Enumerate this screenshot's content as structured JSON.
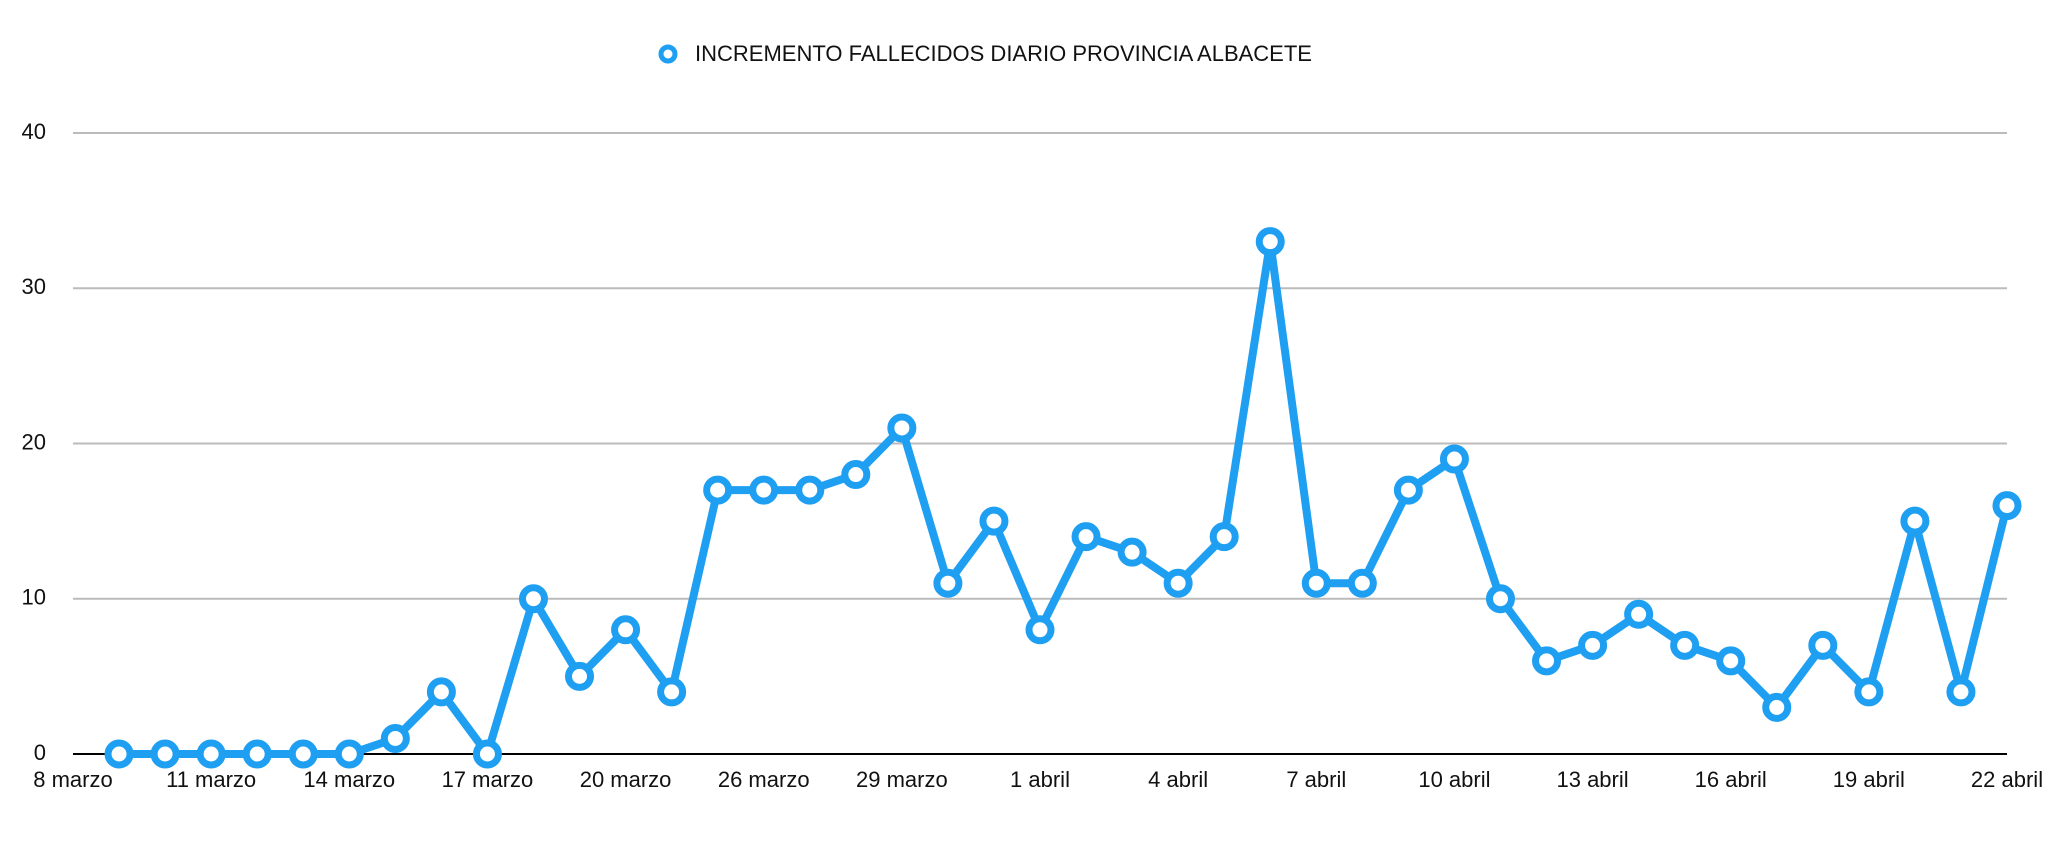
{
  "chart_data": {
    "type": "line",
    "categories": [
      "8 marzo",
      null,
      null,
      "11 marzo",
      null,
      null,
      "14 marzo",
      null,
      null,
      "17 marzo",
      null,
      null,
      "20 marzo",
      null,
      null,
      "26 marzo",
      null,
      null,
      "29 marzo",
      null,
      null,
      "1 abril",
      null,
      null,
      "4 abril",
      null,
      null,
      "7 abril",
      null,
      null,
      "10 abril",
      null,
      null,
      "13 abril",
      null,
      null,
      "16 abril",
      null,
      null,
      "19 abril",
      null,
      null,
      "22 abril"
    ],
    "series": [
      {
        "name": "INCREMENTO FALLECIDOS DIARIO PROVINCIA ALBACETE",
        "color": "#1e9ff2",
        "values": [
          null,
          0,
          0,
          0,
          0,
          0,
          0,
          1,
          4,
          0,
          10,
          5,
          8,
          4,
          17,
          17,
          17,
          18,
          21,
          11,
          15,
          8,
          14,
          13,
          11,
          14,
          33,
          11,
          11,
          17,
          19,
          10,
          6,
          7,
          9,
          7,
          6,
          3,
          7,
          4,
          15,
          4,
          16
        ]
      }
    ],
    "ylim": [
      0,
      40
    ],
    "yticks": [
      0,
      10,
      20,
      30,
      40
    ],
    "grid": true,
    "legend": "top"
  }
}
